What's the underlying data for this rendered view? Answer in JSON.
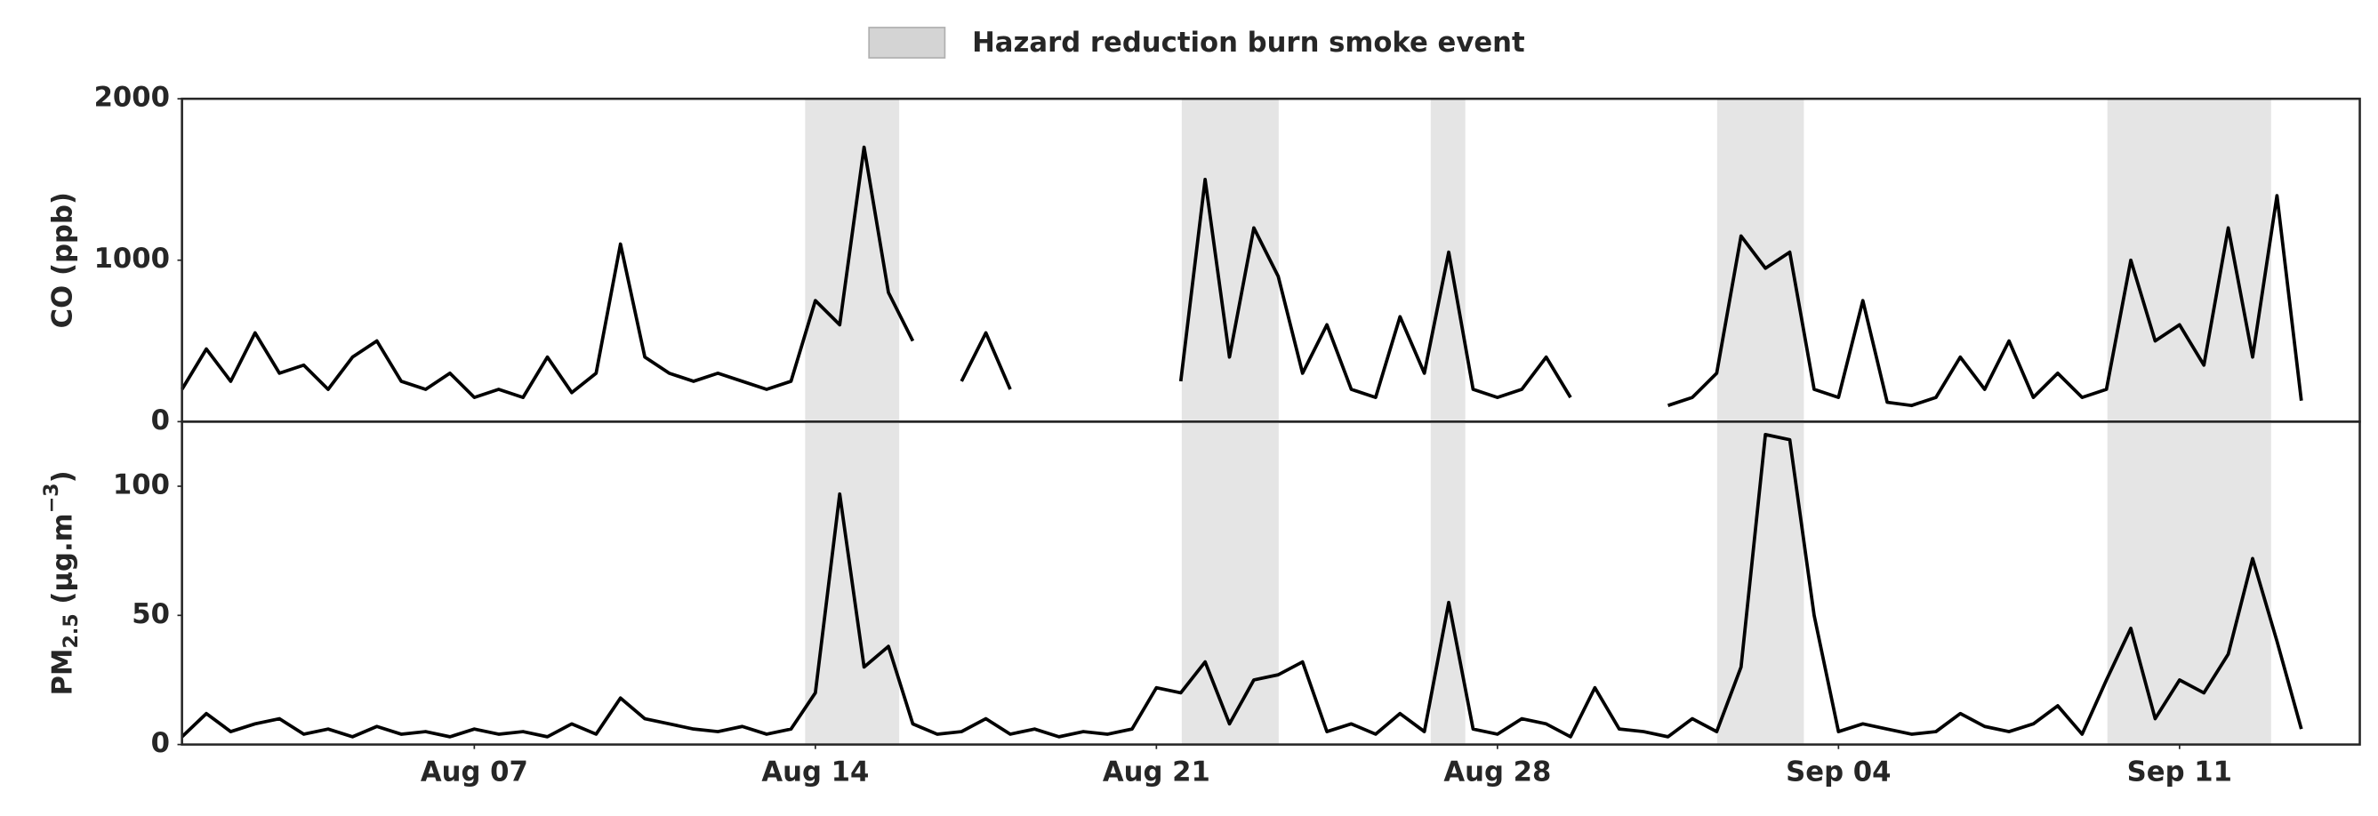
{
  "legend": {
    "label": "Hazard reduction burn smoke event",
    "color": "#d4d4d4",
    "spans": [
      [
        13.79,
        15.72
      ],
      [
        21.52,
        23.51
      ],
      [
        26.63,
        27.34
      ],
      [
        32.51,
        34.29
      ],
      [
        40.52,
        43.88
      ]
    ]
  },
  "chart_data": [
    {
      "type": "line",
      "ylabel": [
        "CO (ppb)"
      ],
      "xlim": [
        1,
        45.7
      ],
      "ylim": [
        0,
        2000
      ],
      "yticks": [
        0,
        1000,
        2000
      ],
      "x": [
        1,
        1.5,
        2,
        2.5,
        3,
        3.5,
        4,
        4.5,
        5,
        5.5,
        6,
        6.5,
        7,
        7.5,
        8,
        8.5,
        9,
        9.5,
        10,
        10.5,
        11,
        11.5,
        12,
        12.5,
        13,
        13.5,
        14,
        14.5,
        15,
        15.5,
        16,
        16.5,
        17,
        17.5,
        18,
        18.5,
        19,
        19.5,
        20,
        20.5,
        21,
        21.5,
        22,
        22.5,
        23,
        23.5,
        24,
        24.5,
        25,
        25.5,
        26,
        26.5,
        27,
        27.5,
        28,
        28.5,
        29,
        29.5,
        30,
        30.5,
        31,
        31.5,
        32,
        32.5,
        33,
        33.5,
        34,
        34.5,
        35,
        35.5,
        36,
        36.5,
        37,
        37.5,
        38,
        38.5,
        39,
        39.5,
        40,
        40.5,
        41,
        41.5,
        42,
        42.5,
        43,
        43.5,
        44,
        44.5
      ],
      "series": [
        {
          "color": "#000000",
          "values": [
            200,
            450,
            250,
            550,
            300,
            350,
            200,
            400,
            500,
            250,
            200,
            300,
            150,
            200,
            150,
            400,
            180,
            300,
            1100,
            400,
            300,
            250,
            300,
            250,
            200,
            250,
            750,
            600,
            1700,
            800,
            500,
            null,
            250,
            550,
            200,
            null,
            null,
            null,
            null,
            null,
            null,
            250,
            1500,
            400,
            1200,
            900,
            300,
            600,
            200,
            150,
            650,
            300,
            1050,
            200,
            150,
            200,
            400,
            150,
            null,
            null,
            null,
            100,
            150,
            300,
            1150,
            950,
            1050,
            200,
            150,
            750,
            120,
            100,
            150,
            400,
            200,
            500,
            150,
            300,
            150,
            200,
            1000,
            500,
            600,
            350,
            1200,
            400,
            1400,
            130
          ]
        }
      ]
    },
    {
      "type": "line",
      "ylabel": [
        "PM",
        "2.5",
        " (μg.m",
        "−3",
        ")"
      ],
      "xlim": [
        1,
        45.7
      ],
      "ylim": [
        0,
        125
      ],
      "yticks": [
        0,
        50,
        100
      ],
      "xticks": [
        {
          "value": 7,
          "label": "Aug 07"
        },
        {
          "value": 14,
          "label": "Aug 14"
        },
        {
          "value": 21,
          "label": "Aug 21"
        },
        {
          "value": 28,
          "label": "Aug 28"
        },
        {
          "value": 35,
          "label": "Sep 04"
        },
        {
          "value": 42,
          "label": "Sep 11"
        }
      ],
      "x": [
        1,
        1.5,
        2,
        2.5,
        3,
        3.5,
        4,
        4.5,
        5,
        5.5,
        6,
        6.5,
        7,
        7.5,
        8,
        8.5,
        9,
        9.5,
        10,
        10.5,
        11,
        11.5,
        12,
        12.5,
        13,
        13.5,
        14,
        14.5,
        15,
        15.5,
        16,
        16.5,
        17,
        17.5,
        18,
        18.5,
        19,
        19.5,
        20,
        20.5,
        21,
        21.5,
        22,
        22.5,
        23,
        23.5,
        24,
        24.5,
        25,
        25.5,
        26,
        26.5,
        27,
        27.5,
        28,
        28.5,
        29,
        29.5,
        30,
        30.5,
        31,
        31.5,
        32,
        32.5,
        33,
        33.5,
        34,
        34.5,
        35,
        35.5,
        36,
        36.5,
        37,
        37.5,
        38,
        38.5,
        39,
        39.5,
        40,
        40.5,
        41,
        41.5,
        42,
        42.5,
        43,
        43.5,
        44,
        44.5
      ],
      "series": [
        {
          "color": "#000000",
          "values": [
            3,
            12,
            5,
            8,
            10,
            4,
            6,
            3,
            7,
            4,
            5,
            3,
            6,
            4,
            5,
            3,
            8,
            4,
            18,
            10,
            8,
            6,
            5,
            7,
            4,
            6,
            20,
            97,
            30,
            38,
            8,
            4,
            5,
            10,
            4,
            6,
            3,
            5,
            4,
            6,
            22,
            20,
            32,
            8,
            25,
            27,
            32,
            5,
            8,
            4,
            12,
            5,
            55,
            6,
            4,
            10,
            8,
            3,
            22,
            6,
            5,
            3,
            10,
            5,
            30,
            120,
            118,
            50,
            5,
            8,
            6,
            4,
            5,
            12,
            7,
            5,
            8,
            15,
            4,
            25,
            45,
            10,
            25,
            20,
            35,
            72,
            40,
            6
          ]
        }
      ]
    }
  ]
}
